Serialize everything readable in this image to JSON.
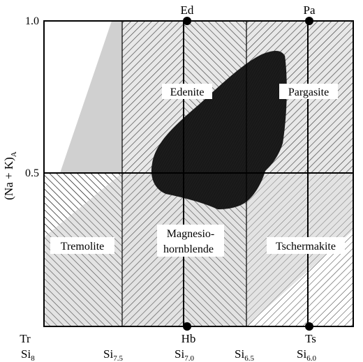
{
  "diagram": {
    "y_axis": {
      "label_main": "(Na + K)",
      "label_sub": "A",
      "ticks": [
        "1.0",
        "0.5"
      ]
    },
    "top_end_members": [
      "Ed",
      "Pa"
    ],
    "bottom_end_members": [
      "Tr",
      "Hb",
      "Ts"
    ],
    "si_scale": [
      {
        "main": "Si",
        "sub": "8"
      },
      {
        "main": "Si",
        "sub": "7.5"
      },
      {
        "main": "Si",
        "sub": "7.0"
      },
      {
        "main": "Si",
        "sub": "6.5"
      },
      {
        "main": "Si",
        "sub": "6.0"
      }
    ],
    "fields": {
      "edenite": "Edenite",
      "pargasite": "Pargasite",
      "tremolite": "Tremolite",
      "magnesio_line1": "Magnesio-",
      "magnesio_line2": "hornblende",
      "tschermakite": "Tschermakite"
    }
  }
}
